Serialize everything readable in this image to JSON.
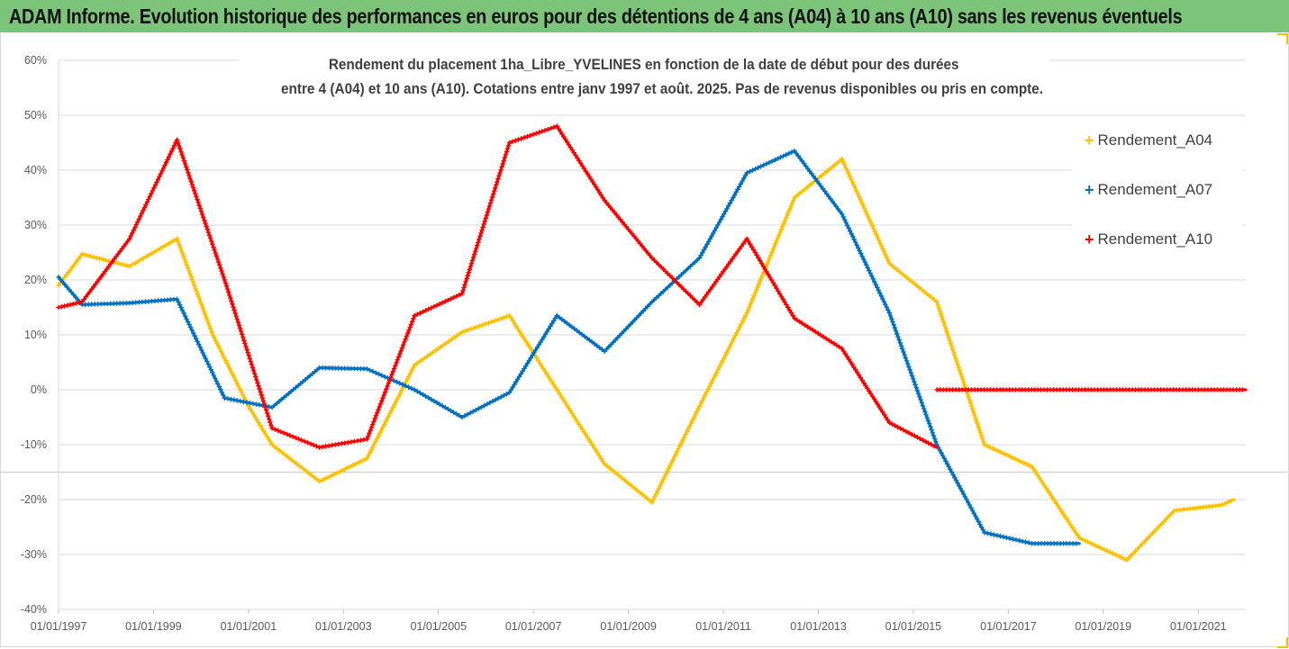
{
  "header": {
    "title": "ADAM Informe. Evolution historique des performances en euros pour des détentions de 4 ans (A04) à 10 ans (A10) sans les revenus éventuels"
  },
  "chart_data": {
    "type": "line",
    "title_line1": "Rendement du placement 1ha_Libre_YVELINES en fonction de la date de début pour des durées",
    "title_line2": "entre 4 (A04) et 10 ans (A10). Cotations entre janv 1997 et août. 2025. Pas de revenus disponibles ou pris en compte.",
    "y_ticks": [
      "60%",
      "50%",
      "40%",
      "30%",
      "20%",
      "10%",
      "0%",
      "-10%",
      "-20%",
      "-30%",
      "-40%"
    ],
    "ylim": [
      -40,
      60
    ],
    "x_ticks": [
      "01/01/1997",
      "01/01/1999",
      "01/01/2001",
      "01/01/2003",
      "01/01/2005",
      "01/01/2007",
      "01/01/2009",
      "01/01/2011",
      "01/01/2013",
      "01/01/2015",
      "01/01/2017",
      "01/01/2019",
      "01/01/2021"
    ],
    "xlim": [
      "1997-01-01",
      "2022-01-01"
    ],
    "legend_position": "right",
    "series": [
      {
        "name": "Rendement_A04",
        "color": "#ffc000",
        "points": [
          [
            "1997-01-01",
            19
          ],
          [
            "1997-07-01",
            24.7
          ],
          [
            "1998-07-01",
            22.5
          ],
          [
            "1999-07-01",
            27.5
          ],
          [
            "2000-04-01",
            10
          ],
          [
            "2001-01-01",
            -3
          ],
          [
            "2001-07-01",
            -10
          ],
          [
            "2002-07-01",
            -16.7
          ],
          [
            "2003-07-01",
            -12.5
          ],
          [
            "2004-07-01",
            4.5
          ],
          [
            "2005-07-01",
            10.5
          ],
          [
            "2006-07-01",
            13.5
          ],
          [
            "2007-07-01",
            0
          ],
          [
            "2008-07-01",
            -13.5
          ],
          [
            "2009-07-01",
            -20.5
          ],
          [
            "2010-07-01",
            -3
          ],
          [
            "2011-07-01",
            14
          ],
          [
            "2012-07-01",
            35
          ],
          [
            "2013-07-01",
            42
          ],
          [
            "2014-07-01",
            23
          ],
          [
            "2015-07-01",
            16
          ],
          [
            "2016-07-01",
            -10
          ],
          [
            "2017-07-01",
            -14
          ],
          [
            "2018-07-01",
            -27
          ],
          [
            "2019-07-01",
            -31
          ],
          [
            "2020-07-01",
            -22
          ],
          [
            "2021-07-01",
            -21
          ],
          [
            "2021-10-01",
            -20
          ]
        ]
      },
      {
        "name": "Rendement_A07",
        "color": "#0070c0",
        "points": [
          [
            "1997-01-01",
            20.5
          ],
          [
            "1997-07-01",
            15.5
          ],
          [
            "1998-07-01",
            15.8
          ],
          [
            "1999-07-01",
            16.5
          ],
          [
            "2000-07-01",
            -1.5
          ],
          [
            "2001-07-01",
            -3.2
          ],
          [
            "2002-07-01",
            4
          ],
          [
            "2003-07-01",
            3.8
          ],
          [
            "2004-07-01",
            0
          ],
          [
            "2005-07-01",
            -5
          ],
          [
            "2006-07-01",
            -0.5
          ],
          [
            "2007-07-01",
            13.5
          ],
          [
            "2008-07-01",
            7
          ],
          [
            "2009-07-01",
            16
          ],
          [
            "2010-07-01",
            24
          ],
          [
            "2011-07-01",
            39.5
          ],
          [
            "2012-07-01",
            43.5
          ],
          [
            "2013-07-01",
            32
          ],
          [
            "2014-07-01",
            14
          ],
          [
            "2015-07-01",
            -10
          ],
          [
            "2016-07-01",
            -26
          ],
          [
            "2017-07-01",
            -28
          ],
          [
            "2018-07-01",
            -28
          ]
        ]
      },
      {
        "name": "Rendement_A10",
        "color": "#ff0000",
        "points": [
          [
            "1997-01-01",
            15
          ],
          [
            "1997-07-01",
            16
          ],
          [
            "1998-07-01",
            27.5
          ],
          [
            "1999-07-01",
            45.5
          ],
          [
            "2000-07-01",
            20
          ],
          [
            "2001-07-01",
            -7
          ],
          [
            "2002-07-01",
            -10.5
          ],
          [
            "2003-07-01",
            -9
          ],
          [
            "2004-07-01",
            13.5
          ],
          [
            "2005-07-01",
            17.5
          ],
          [
            "2006-07-01",
            45
          ],
          [
            "2007-07-01",
            48
          ],
          [
            "2008-07-01",
            34.5
          ],
          [
            "2009-07-01",
            24
          ],
          [
            "2010-07-01",
            15.5
          ],
          [
            "2011-07-01",
            27.5
          ],
          [
            "2012-07-01",
            13
          ],
          [
            "2013-07-01",
            7.5
          ],
          [
            "2014-07-01",
            -6
          ],
          [
            "2015-07-01",
            -10.5
          ],
          [
            "2015-07-02",
            0
          ],
          [
            "2022-01-01",
            0
          ]
        ]
      }
    ]
  }
}
